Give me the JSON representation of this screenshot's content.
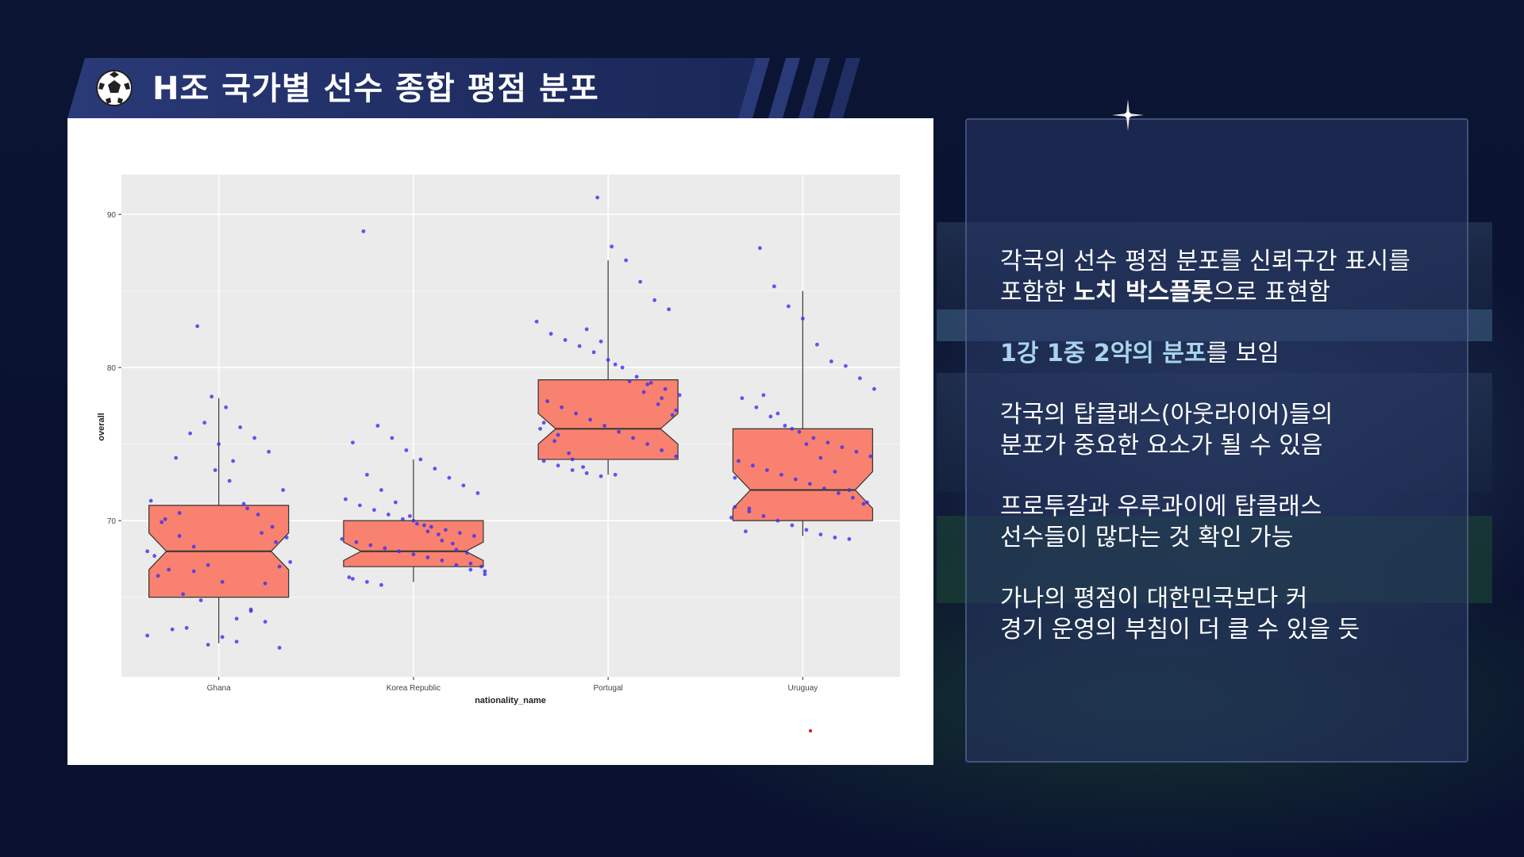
{
  "slide": {
    "title": "H조 국가별 선수 종합 평점 분포",
    "title_icon": "soccer-ball-icon",
    "colors": {
      "background": "#0a1230",
      "title_bar": "#2a3a78",
      "box_fill": "#f8826f",
      "points": "#3a2ff0",
      "accent_text": "#a8d4ec"
    }
  },
  "notes": [
    {
      "line1": "각국의 선수 평점 분포를 신뢰구간 표시를",
      "line2_pre": "포함한 ",
      "line2_bold": "노치 박스플롯",
      "line2_post": "으로 표현함"
    },
    {
      "accent": "1강 1중 2약의 분포",
      "rest": "를 보임"
    },
    {
      "line1": "각국의 탑클래스(아웃라이어)들의",
      "line2": "분포가 중요한 요소가 될 수 있음"
    },
    {
      "line1": "프로투갈과 우루과이에 탑클래스",
      "line2": "선수들이 많다는 것 확인 가능"
    },
    {
      "line1": "가나의 평점이 대한민국보다 커",
      "line2": "경기 운영의 부침이 더 클 수 있을 듯"
    }
  ],
  "chart_data": {
    "type": "box",
    "variant": "notched",
    "xlabel": "nationality_name",
    "ylabel": "overall",
    "ylim": [
      59.8,
      92.6
    ],
    "yticks": [
      70,
      80,
      90
    ],
    "categories": [
      "Ghana",
      "Korea Republic",
      "Portugal",
      "Uruguay"
    ],
    "grid": true,
    "legend": "none",
    "boxes": [
      {
        "name": "Ghana",
        "q1": 65,
        "median": 68,
        "q3": 71,
        "lower_whisker": 62,
        "upper_whisker": 78,
        "notch": [
          66.8,
          69.2
        ]
      },
      {
        "name": "Korea Republic",
        "q1": 67,
        "median": 68,
        "q3": 70,
        "lower_whisker": 66,
        "upper_whisker": 74,
        "notch": [
          67.4,
          68.6
        ]
      },
      {
        "name": "Portugal",
        "q1": 74,
        "median": 76,
        "q3": 79.2,
        "lower_whisker": 73,
        "upper_whisker": 87,
        "notch": [
          75,
          77
        ]
      },
      {
        "name": "Uruguay",
        "q1": 70,
        "median": 72,
        "q3": 76,
        "lower_whisker": 69,
        "upper_whisker": 85,
        "notch": [
          70.8,
          73.2
        ]
      }
    ],
    "points": [
      {
        "cat": 0,
        "values": [
          62.5,
          61.7,
          63.4,
          64.2,
          62.1,
          66.0,
          67.1,
          68.3,
          69.0,
          70.1,
          71.3,
          72.0,
          74.5,
          75.4,
          76.1,
          77.4,
          78.1,
          82.7,
          65.2,
          66.8,
          67.7,
          68.9,
          69.6,
          70.4,
          71.1,
          72.6,
          73.3,
          64.8,
          63.0,
          62.9,
          66.4,
          67.3,
          68.6,
          69.2,
          70.8,
          73.9,
          75.0,
          76.4,
          75.7,
          74.1,
          69.9,
          68.0,
          67.0,
          65.9,
          64.1,
          63.6,
          62.4,
          61.9,
          66.7,
          70.5
        ]
      },
      {
        "cat": 1,
        "values": [
          65.8,
          66.0,
          66.2,
          66.5,
          66.8,
          67.1,
          67.4,
          67.6,
          67.8,
          68.0,
          68.2,
          68.4,
          68.6,
          68.8,
          69.0,
          69.2,
          69.4,
          69.6,
          69.8,
          70.1,
          70.4,
          70.7,
          71.0,
          71.4,
          71.8,
          72.3,
          72.8,
          73.4,
          74.0,
          74.6,
          75.4,
          76.2,
          88.9,
          66.3,
          67.0,
          67.9,
          68.5,
          69.1,
          69.7,
          70.3,
          71.2,
          72.0,
          73.0,
          75.1,
          66.7,
          67.2,
          68.1,
          68.7,
          69.3,
          70.0
        ]
      },
      {
        "cat": 2,
        "values": [
          73.0,
          72.9,
          73.1,
          73.3,
          73.6,
          73.9,
          74.2,
          74.6,
          75.0,
          75.4,
          75.8,
          76.2,
          76.6,
          77.0,
          77.4,
          77.8,
          78.2,
          78.6,
          79.0,
          79.4,
          80.0,
          80.5,
          81.0,
          81.4,
          81.8,
          82.2,
          83.0,
          83.8,
          84.4,
          85.6,
          87.0,
          87.9,
          91.1,
          73.5,
          74.4,
          75.2,
          76.0,
          76.9,
          77.6,
          78.4,
          79.1,
          80.2,
          81.7,
          82.5,
          74.0,
          75.6,
          76.4,
          77.2,
          78.0,
          78.9
        ]
      },
      {
        "cat": 3,
        "values": [
          68.8,
          68.9,
          69.1,
          69.4,
          69.7,
          70.0,
          70.3,
          70.6,
          70.9,
          71.2,
          71.5,
          71.8,
          72.1,
          72.4,
          72.7,
          73.0,
          73.3,
          73.6,
          73.9,
          74.2,
          74.5,
          74.8,
          75.1,
          75.4,
          75.8,
          76.2,
          76.8,
          77.4,
          78.0,
          78.6,
          79.3,
          80.1,
          80.4,
          81.5,
          83.2,
          84.0,
          85.3,
          87.8,
          69.3,
          70.2,
          71.1,
          72.0,
          73.2,
          74.1,
          75.0,
          76.0,
          77.0,
          78.2,
          70.8,
          72.8
        ]
      }
    ]
  }
}
